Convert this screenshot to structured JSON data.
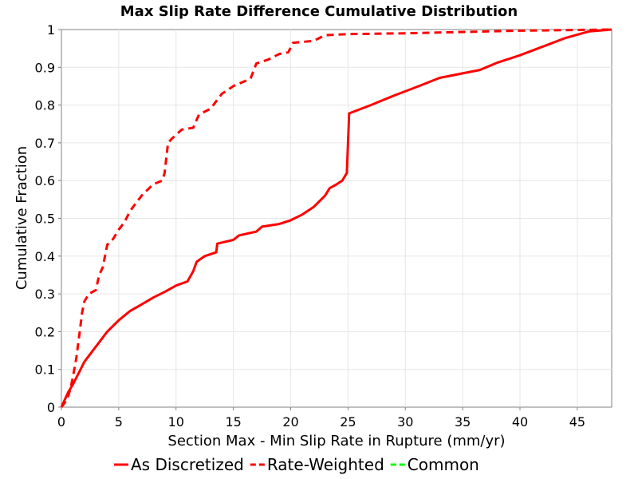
{
  "chart_data": {
    "type": "line",
    "title": "Max Slip Rate Difference Cumulative Distribution",
    "xlabel": "Section Max - Min Slip Rate in Rupture (mm/yr)",
    "ylabel": "Cumulative Fraction",
    "xlim": [
      0,
      48
    ],
    "ylim": [
      0,
      1
    ],
    "xticks": [
      0,
      5,
      10,
      15,
      20,
      25,
      30,
      35,
      40,
      45
    ],
    "yticks": [
      0,
      0.1,
      0.2,
      0.3,
      0.4,
      0.5,
      0.6,
      0.7,
      0.8,
      0.9,
      1
    ],
    "xtick_labels": [
      "0",
      "5",
      "10",
      "15",
      "20",
      "25",
      "30",
      "35",
      "40",
      "45"
    ],
    "ytick_labels": [
      "0",
      "0.1",
      "0.2",
      "0.3",
      "0.4",
      "0.5",
      "0.6",
      "0.7",
      "0.8",
      "0.9",
      "1"
    ],
    "grid": true,
    "legend_position": "bottom",
    "series": [
      {
        "name": "As Discretized",
        "color": "#ff0000",
        "style": "solid",
        "x": [
          0,
          0.3,
          0.6,
          1.0,
          1.5,
          2.0,
          2.5,
          3.0,
          4.0,
          5.0,
          6.0,
          7.0,
          8.0,
          9.0,
          10.0,
          11.0,
          11.5,
          11.8,
          12.5,
          13.5,
          13.6,
          15.0,
          15.5,
          17.0,
          17.5,
          19.0,
          20.0,
          21.0,
          22.0,
          23.0,
          23.4,
          24.0,
          24.5,
          24.9,
          25.0,
          25.1,
          27.0,
          29.0,
          31.0,
          33.0,
          36.5,
          38.0,
          40.0,
          42.0,
          44.0,
          46.0,
          48.0
        ],
        "y": [
          0,
          0.02,
          0.04,
          0.06,
          0.09,
          0.12,
          0.14,
          0.16,
          0.2,
          0.23,
          0.255,
          0.272,
          0.29,
          0.305,
          0.322,
          0.333,
          0.36,
          0.385,
          0.4,
          0.41,
          0.433,
          0.443,
          0.455,
          0.465,
          0.478,
          0.485,
          0.495,
          0.51,
          0.53,
          0.56,
          0.58,
          0.59,
          0.6,
          0.62,
          0.7,
          0.778,
          0.8,
          0.825,
          0.848,
          0.872,
          0.893,
          0.912,
          0.932,
          0.955,
          0.978,
          0.995,
          1.0
        ]
      },
      {
        "name": "Rate-Weighted",
        "color": "#ff0000",
        "style": "dashed",
        "x": [
          0,
          0.5,
          0.8,
          1.0,
          1.3,
          1.6,
          1.8,
          2.0,
          2.4,
          3.0,
          3.3,
          3.6,
          4.0,
          4.5,
          5.0,
          5.5,
          6.0,
          7.0,
          8.0,
          8.8,
          9.0,
          9.3,
          9.6,
          10.5,
          11.5,
          12.0,
          13.0,
          14.0,
          15.0,
          16.5,
          17.0,
          18.0,
          19.0,
          19.8,
          20.2,
          22.0,
          23.0,
          25.0,
          30.0,
          40.0,
          48.0
        ],
        "y": [
          0,
          0.02,
          0.05,
          0.08,
          0.13,
          0.2,
          0.25,
          0.28,
          0.3,
          0.31,
          0.35,
          0.37,
          0.43,
          0.445,
          0.47,
          0.49,
          0.52,
          0.56,
          0.59,
          0.6,
          0.62,
          0.7,
          0.71,
          0.735,
          0.74,
          0.775,
          0.79,
          0.83,
          0.85,
          0.87,
          0.91,
          0.92,
          0.935,
          0.94,
          0.965,
          0.97,
          0.985,
          0.988,
          0.99,
          0.997,
          1.0
        ]
      },
      {
        "name": "Common",
        "color": "#00ff00",
        "style": "dashed",
        "x": [],
        "y": []
      }
    ]
  }
}
